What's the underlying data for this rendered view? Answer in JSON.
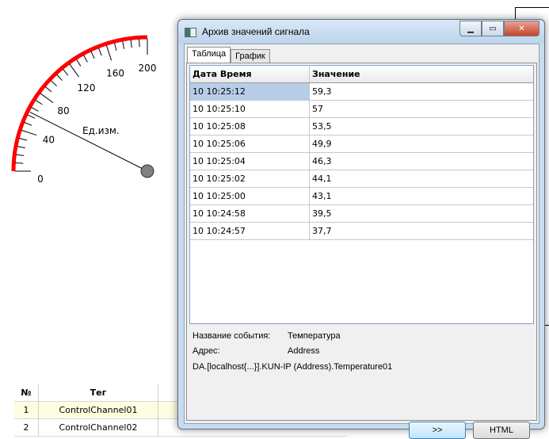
{
  "gauge": {
    "min": 0,
    "max": 200,
    "value": 59.3,
    "unit_label": "Ед.изм.",
    "tick_labels": [
      "0",
      "40",
      "80",
      "120",
      "160",
      "200"
    ],
    "arc_color": "#ff0000"
  },
  "background_table": {
    "headers": [
      "№",
      "Тег"
    ],
    "rows": [
      [
        "1",
        "ControlChannel01"
      ],
      [
        "2",
        "ControlChannel02"
      ]
    ]
  },
  "dialog": {
    "title": "Архив значений сигнала",
    "tabs": [
      {
        "label": "Таблица",
        "active": true
      },
      {
        "label": "График",
        "active": false
      }
    ],
    "table": {
      "headers": [
        "Дата Время",
        "Значение"
      ],
      "rows": [
        [
          "10 10:25:12",
          "59,3"
        ],
        [
          "10 10:25:10",
          "57"
        ],
        [
          "10 10:25:08",
          "53,5"
        ],
        [
          "10 10:25:06",
          "49,9"
        ],
        [
          "10 10:25:04",
          "46,3"
        ],
        [
          "10 10:25:02",
          "44,1"
        ],
        [
          "10 10:25:00",
          "43,1"
        ],
        [
          "10 10:24:58",
          "39,5"
        ],
        [
          "10 10:24:57",
          "37,7"
        ]
      ],
      "selected_row": 0
    },
    "info": {
      "event_name_label": "Название события:",
      "event_name_value": "Температура",
      "address_label": "Адрес:",
      "address_value": "Address",
      "full_path": "DA.[localhost{...}].KUN-IP (Address).Temperature01"
    },
    "buttons": {
      "next": ">>",
      "html": "HTML"
    }
  }
}
